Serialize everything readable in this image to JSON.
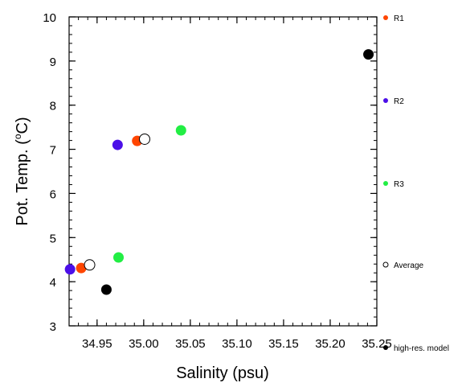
{
  "chart_data": {
    "type": "scatter",
    "xlabel": "Salinity (psu)",
    "ylabel": "Pot. Temp. (",
    "ylabel_unit": "o",
    "ylabel_tail": "C)",
    "xlim": [
      34.92,
      35.25
    ],
    "ylim": [
      3,
      10
    ],
    "xticks": [
      34.95,
      35.0,
      35.05,
      35.1,
      35.15,
      35.2,
      35.25
    ],
    "xtick_labels": [
      "34.95",
      "35.00",
      "35.05",
      "35.10",
      "35.15",
      "35.20",
      "35.25"
    ],
    "yticks": [
      3,
      4,
      5,
      6,
      7,
      8,
      9,
      10
    ],
    "ytick_labels": [
      "3",
      "4",
      "5",
      "6",
      "7",
      "8",
      "9",
      "10"
    ],
    "grid": false,
    "legend_placement": "right",
    "series": [
      {
        "name": "R1",
        "color": "#ff4500",
        "marker": "filled",
        "points": [
          [
            34.933,
            4.31
          ],
          [
            34.993,
            7.19
          ]
        ]
      },
      {
        "name": "R2",
        "color": "#4b0fe8",
        "marker": "filled",
        "points": [
          [
            34.921,
            4.28
          ],
          [
            34.972,
            7.1
          ]
        ]
      },
      {
        "name": "R3",
        "color": "#22ee44",
        "marker": "filled",
        "points": [
          [
            34.973,
            4.55
          ],
          [
            35.04,
            7.43
          ]
        ]
      },
      {
        "name": "Average",
        "color": "#000000",
        "marker": "open",
        "points": [
          [
            34.942,
            4.38
          ],
          [
            35.001,
            7.23
          ]
        ]
      },
      {
        "name": "high-res. model",
        "color": "#000000",
        "marker": "filled",
        "points": [
          [
            34.96,
            3.82
          ],
          [
            35.241,
            9.15
          ]
        ]
      }
    ]
  }
}
